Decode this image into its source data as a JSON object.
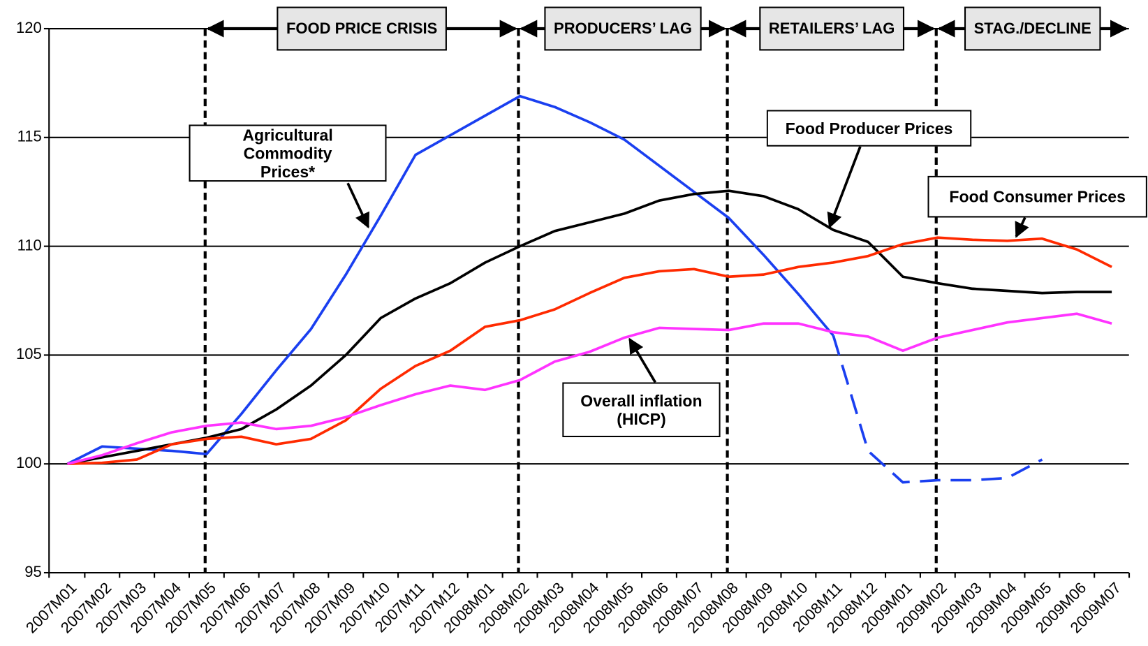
{
  "chart_data": {
    "type": "line",
    "categories": [
      "2007M01",
      "2007M02",
      "2007M03",
      "2007M04",
      "2007M05",
      "2007M06",
      "2007M07",
      "2007M08",
      "2007M09",
      "2007M10",
      "2007M11",
      "2007M12",
      "2008M01",
      "2008M02",
      "2008M03",
      "2008M04",
      "2008M05",
      "2008M06",
      "2008M07",
      "2008M08",
      "2008M09",
      "2008M10",
      "2008M11",
      "2008M12",
      "2009M01",
      "2009M02",
      "2009M03",
      "2009M04",
      "2009M05",
      "2009M06",
      "2009M07"
    ],
    "ylim": [
      95,
      120
    ],
    "yticks": [
      95,
      100,
      105,
      110,
      115,
      120
    ],
    "grid": true,
    "phases": [
      {
        "label": "FOOD PRICE CRISIS",
        "start": "2007M05"
      },
      {
        "label": "PRODUCERS’ LAG",
        "start": "2008M02"
      },
      {
        "label": "RETAILERS’ LAG",
        "start": "2008M08"
      },
      {
        "label": "STAG./DECLINE",
        "start": "2009M02"
      }
    ],
    "series": [
      {
        "name": "Agricultural Commodity Prices*",
        "color": "#1a3ff0",
        "projected_from": "2008M11",
        "values": [
          100,
          100.8,
          100.7,
          100.6,
          100.45,
          102.3,
          104.3,
          106.2,
          108.7,
          111.4,
          114.2,
          115.1,
          116.0,
          116.9,
          116.4,
          115.7,
          114.9,
          113.7,
          112.5,
          111.3,
          109.6,
          107.8,
          105.9,
          100.6,
          99.15,
          99.25,
          99.25,
          99.35,
          100.2,
          null,
          null
        ]
      },
      {
        "name": "Food Producer Prices",
        "color": "#000000",
        "values": [
          100,
          100.3,
          100.6,
          100.9,
          101.2,
          101.6,
          102.5,
          103.6,
          105.0,
          106.7,
          107.6,
          108.3,
          109.25,
          110.0,
          110.7,
          111.1,
          111.5,
          112.1,
          112.4,
          112.55,
          112.3,
          111.7,
          110.75,
          110.2,
          108.6,
          108.3,
          108.05,
          107.95,
          107.85,
          107.9,
          107.9
        ]
      },
      {
        "name": "Food Consumer Prices",
        "color": "#ff2a00",
        "values": [
          100,
          100.05,
          100.2,
          100.9,
          101.15,
          101.25,
          100.9,
          101.15,
          102.0,
          103.45,
          104.5,
          105.2,
          106.3,
          106.6,
          107.1,
          107.85,
          108.55,
          108.85,
          108.95,
          108.6,
          108.7,
          109.05,
          109.25,
          109.55,
          110.1,
          110.4,
          110.3,
          110.25,
          110.35,
          109.85,
          109.05
        ]
      },
      {
        "name": "Overall inflation (HICP)",
        "color": "#ff33ff",
        "values": [
          100,
          100.4,
          100.95,
          101.45,
          101.75,
          101.9,
          101.6,
          101.75,
          102.15,
          102.7,
          103.2,
          103.6,
          103.4,
          103.85,
          104.7,
          105.15,
          105.8,
          106.25,
          106.2,
          106.15,
          106.45,
          106.45,
          106.05,
          105.85,
          105.2,
          105.8,
          106.15,
          106.5,
          106.7,
          106.9,
          106.45
        ]
      }
    ]
  }
}
